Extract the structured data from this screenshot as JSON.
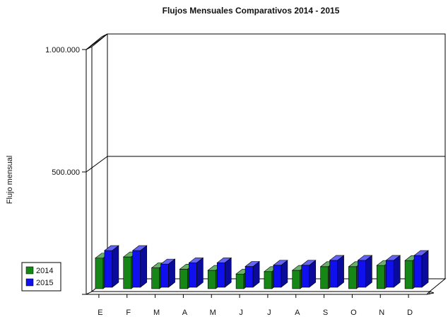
{
  "chart_data": {
    "type": "bar",
    "title": "Flujos Mensuales Comparativos 2014 - 2015",
    "xlabel": "",
    "ylabel": "Flujo mensual",
    "ylim": [
      0,
      1000000
    ],
    "yticks": [
      {
        "value": 500000,
        "label": "500.000"
      },
      {
        "value": 1000000,
        "label": "1.000.000"
      }
    ],
    "categories": [
      "E",
      "F",
      "M",
      "A",
      "M",
      "J",
      "J",
      "A",
      "S",
      "O",
      "N",
      "D"
    ],
    "series": [
      {
        "name": "2014",
        "color": "#168716",
        "values": [
          125000,
          130000,
          85000,
          80000,
          75000,
          60000,
          70000,
          75000,
          90000,
          90000,
          95000,
          115000
        ]
      },
      {
        "name": "2015",
        "color": "#1010ee",
        "values": [
          150000,
          150000,
          95000,
          100000,
          100000,
          85000,
          90000,
          90000,
          110000,
          110000,
          110000,
          130000
        ]
      }
    ],
    "grid": true,
    "legend_position": "bottom-left",
    "style": "3d"
  }
}
